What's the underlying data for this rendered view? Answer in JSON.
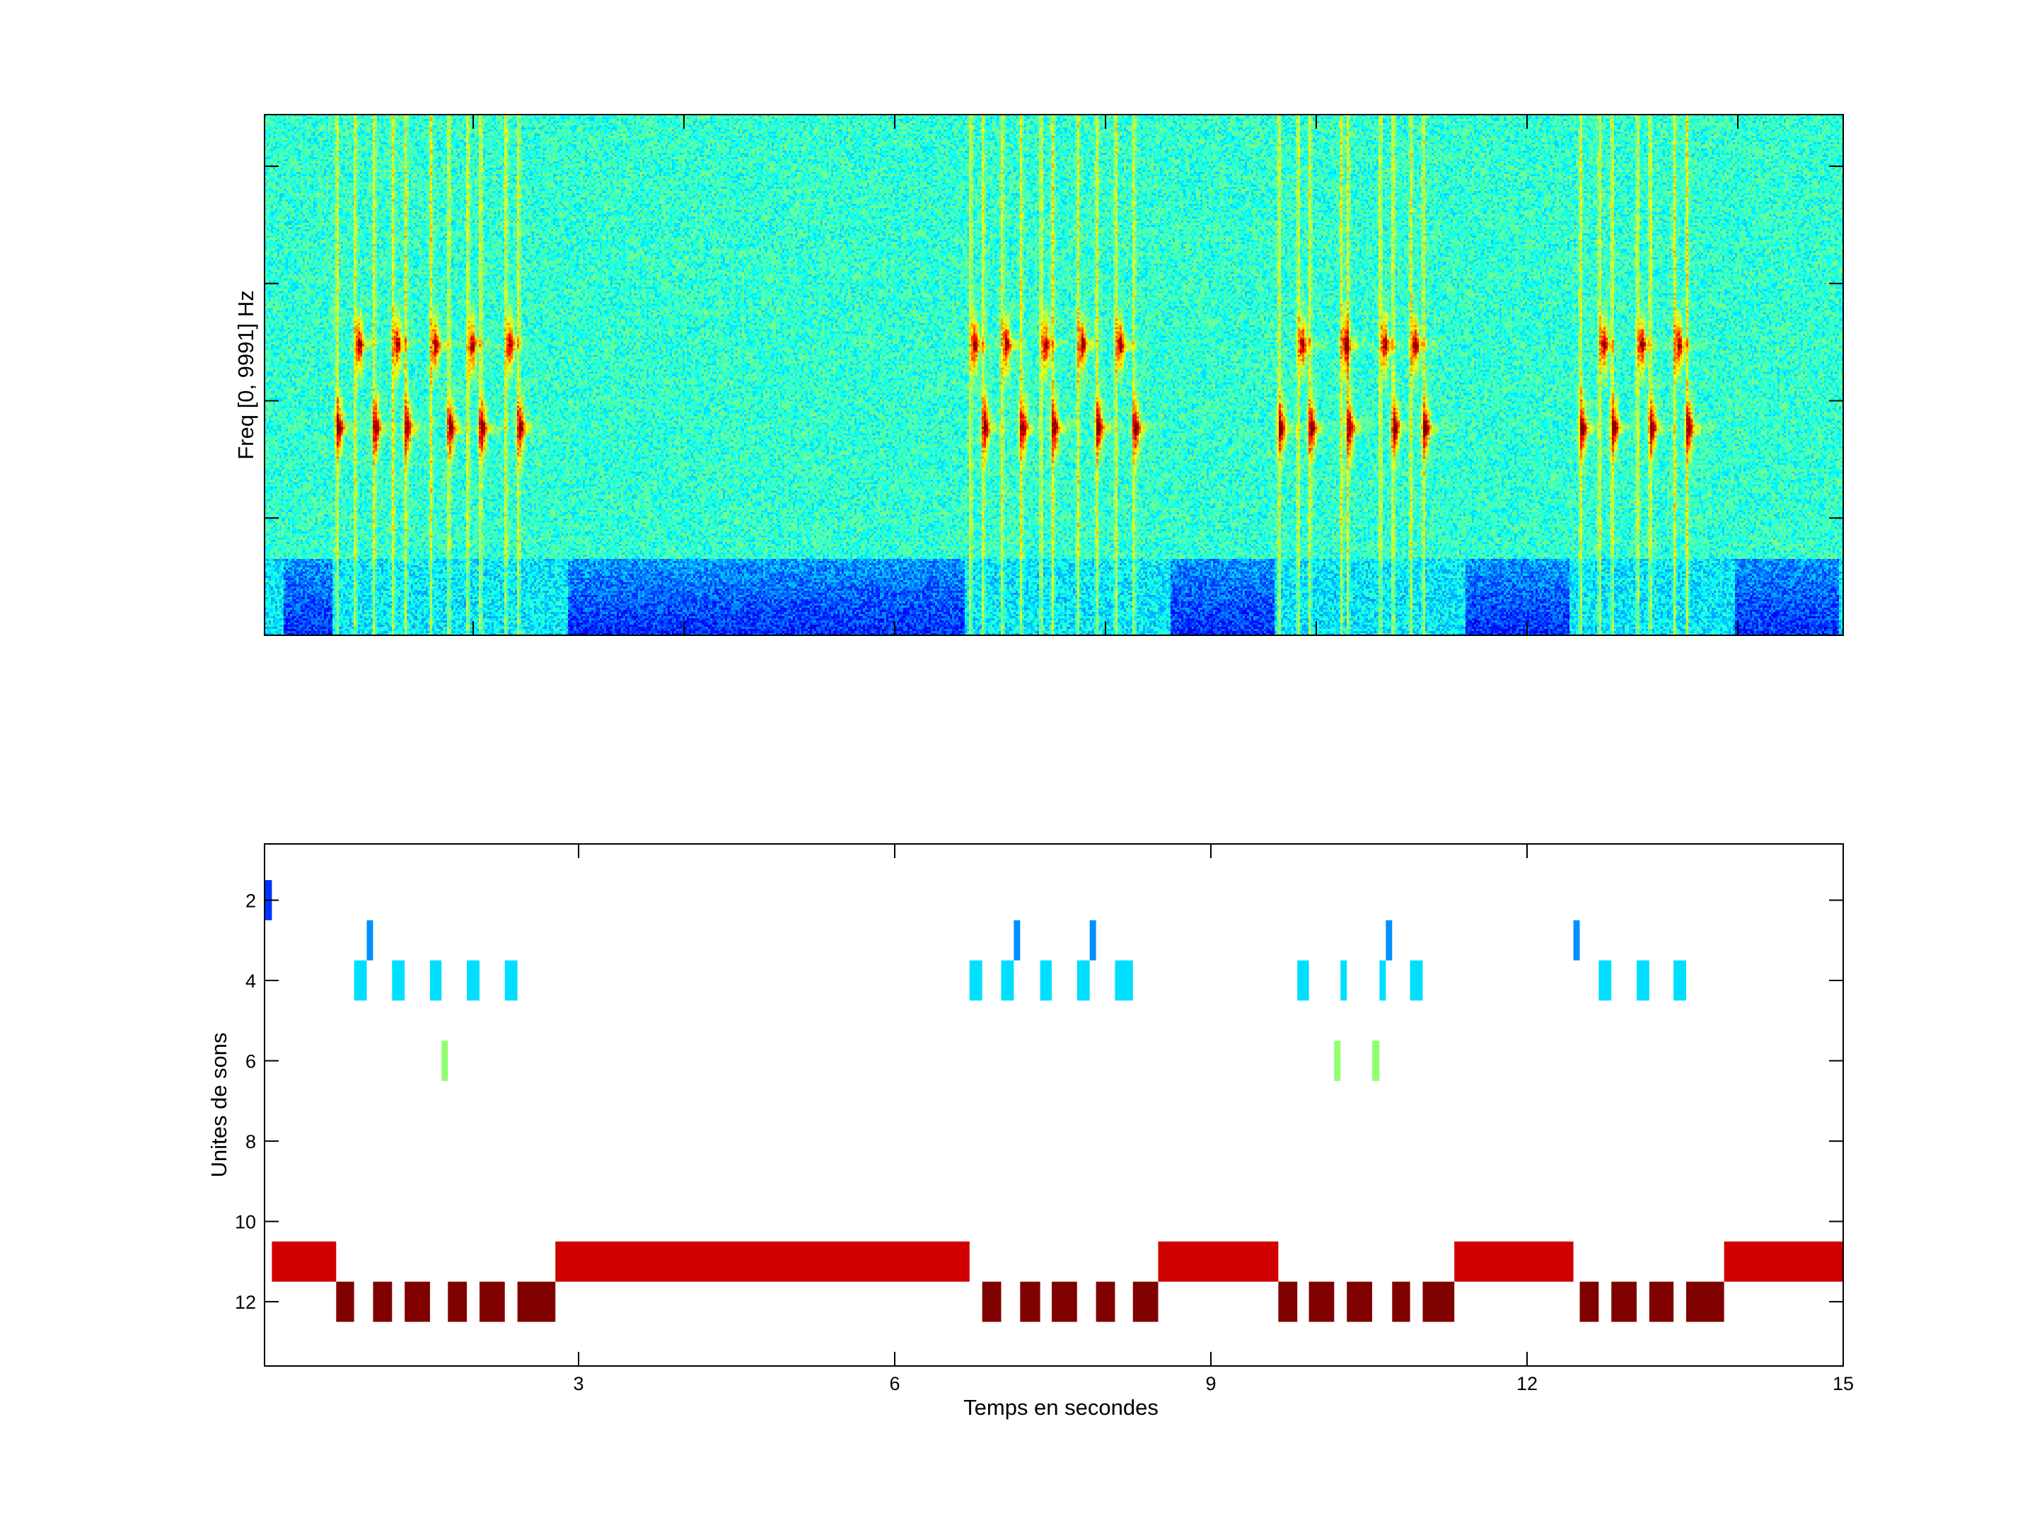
{
  "chart_data": [
    {
      "type": "heatmap",
      "title": "",
      "xlabel": "",
      "ylabel": "Freq [0, 9991] Hz",
      "xlim": [
        0.02,
        15.0
      ],
      "ylim": [
        0,
        9991
      ],
      "xticks": [
        2,
        4,
        6,
        8,
        10,
        12,
        14
      ],
      "yticks": [
        2250,
        4500,
        6750,
        9000
      ],
      "colormap": "jet",
      "call_band_fractions": {
        "upper": 0.56,
        "lower": 0.4
      }
    },
    {
      "type": "bar",
      "title": "",
      "xlabel": "Temps en secondes",
      "ylabel": "Unites de sons",
      "xlim": [
        0.02,
        15.0
      ],
      "ylim": [
        0.6,
        13.6
      ],
      "y_reversed": true,
      "xticks": [
        3,
        6,
        9,
        12,
        15
      ],
      "yticks": [
        2,
        4,
        6,
        8,
        10,
        12
      ],
      "series": [
        {
          "unit": 2,
          "color": "#0033ff",
          "segments": [
            [
              0.02,
              0.09
            ]
          ]
        },
        {
          "unit": 3,
          "color": "#0090ff",
          "segments": [
            [
              0.99,
              1.05
            ],
            [
              7.13,
              7.19
            ],
            [
              7.85,
              7.91
            ],
            [
              10.66,
              10.72
            ],
            [
              12.44,
              12.5
            ]
          ]
        },
        {
          "unit": 4,
          "color": "#00dfff",
          "segments": [
            [
              0.87,
              0.99
            ],
            [
              1.23,
              1.35
            ],
            [
              1.59,
              1.7
            ],
            [
              1.94,
              2.06
            ],
            [
              2.3,
              2.42
            ],
            [
              6.71,
              6.83
            ],
            [
              7.01,
              7.13
            ],
            [
              7.38,
              7.49
            ],
            [
              7.73,
              7.85
            ],
            [
              8.09,
              8.26
            ],
            [
              9.82,
              9.93
            ],
            [
              10.23,
              10.29
            ],
            [
              10.6,
              10.66
            ],
            [
              10.89,
              11.01
            ],
            [
              12.68,
              12.8
            ],
            [
              13.04,
              13.16
            ],
            [
              13.39,
              13.51
            ]
          ]
        },
        {
          "unit": 6,
          "color": "#90ff70",
          "segments": [
            [
              1.7,
              1.76
            ],
            [
              10.17,
              10.23
            ],
            [
              10.53,
              10.6
            ]
          ]
        },
        {
          "unit": 11,
          "color": "#d00000",
          "segments": [
            [
              0.09,
              0.7
            ],
            [
              2.78,
              6.71
            ],
            [
              8.5,
              9.64
            ],
            [
              11.31,
              12.44
            ],
            [
              13.87,
              15.0
            ]
          ]
        },
        {
          "unit": 12,
          "color": "#800000",
          "segments": [
            [
              0.7,
              0.87
            ],
            [
              1.05,
              1.23
            ],
            [
              1.35,
              1.59
            ],
            [
              1.76,
              1.94
            ],
            [
              2.06,
              2.3
            ],
            [
              2.42,
              2.78
            ],
            [
              6.83,
              7.01
            ],
            [
              7.19,
              7.38
            ],
            [
              7.49,
              7.73
            ],
            [
              7.91,
              8.09
            ],
            [
              8.26,
              8.5
            ],
            [
              9.64,
              9.82
            ],
            [
              9.93,
              10.17
            ],
            [
              10.29,
              10.53
            ],
            [
              10.72,
              10.89
            ],
            [
              11.01,
              11.31
            ],
            [
              12.5,
              12.68
            ],
            [
              12.8,
              13.04
            ],
            [
              13.16,
              13.39
            ],
            [
              13.51,
              13.87
            ]
          ]
        }
      ]
    }
  ]
}
